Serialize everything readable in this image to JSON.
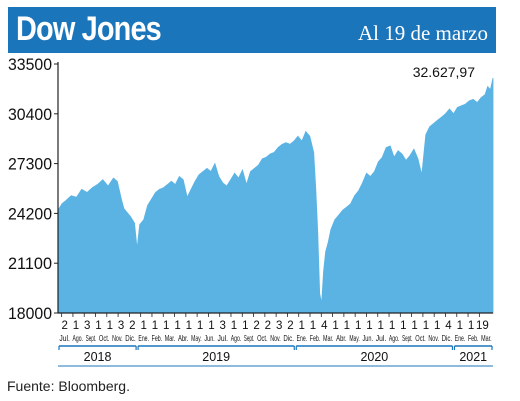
{
  "header": {
    "title": "Dow Jones",
    "subtitle": "Al 19 de marzo"
  },
  "source": "Fuente: Bloomberg.",
  "colors": {
    "header": "#1b75bb",
    "area": "#5bb3e4",
    "plot_bg": "#ffffff",
    "axis_band": "#1b75bb"
  },
  "chart_data": {
    "type": "area",
    "title": "Dow Jones",
    "subtitle": "Al 19 de marzo",
    "ylim": [
      18000,
      33500
    ],
    "yticks": [
      "33500",
      "30400",
      "27300",
      "24200",
      "21100",
      "18000"
    ],
    "annotation": "32.627,97",
    "grid": false,
    "month_labels": [
      "Jul.",
      "Ago.",
      "Sept.",
      "Oct.",
      "Nov.",
      "Dic.",
      "Ene.",
      "Feb.",
      "Mar.",
      "Abr.",
      "May.",
      "Jun.",
      "Jul.",
      "Ago.",
      "Sept.",
      "Oct.",
      "Nov.",
      "Dic.",
      "Ene.",
      "Feb.",
      "Mar.",
      "Abr.",
      "May.",
      "Jun.",
      "Jul.",
      "Ago.",
      "Sept.",
      "Oct.",
      "Nov.",
      "Dic.",
      "Ene.",
      "Feb.",
      "Mar."
    ],
    "day_labels": [
      "2",
      "1",
      "3",
      "1",
      "1",
      "3",
      "2",
      "1",
      "1",
      "1",
      "1",
      "1",
      "1",
      "1",
      "3",
      "1",
      "1",
      "2",
      "2",
      "3",
      "2",
      "1",
      "1",
      "4",
      "1",
      "1",
      "1",
      "1",
      "1",
      "1",
      "1",
      "1",
      "1",
      "1",
      "4",
      "1",
      "1",
      "19"
    ],
    "years": [
      {
        "label": "2018",
        "start": 0,
        "end": 6
      },
      {
        "label": "2019",
        "start": 6,
        "end": 18
      },
      {
        "label": "2020",
        "start": 18,
        "end": 30
      },
      {
        "label": "2021",
        "start": 30,
        "end": 33
      }
    ],
    "x": [
      0,
      0.3,
      0.6,
      1.0,
      1.4,
      1.8,
      2.2,
      2.6,
      3.0,
      3.4,
      3.8,
      4.2,
      4.5,
      4.8,
      5.0,
      5.2,
      5.5,
      5.8,
      6.0,
      6.2,
      6.5,
      6.8,
      7.1,
      7.4,
      7.7,
      8.0,
      8.3,
      8.6,
      8.9,
      9.2,
      9.5,
      9.8,
      10.1,
      10.4,
      10.7,
      11.0,
      11.3,
      11.6,
      11.9,
      12.2,
      12.5,
      12.8,
      13.1,
      13.4,
      13.7,
      14.0,
      14.3,
      14.6,
      14.9,
      15.2,
      15.5,
      15.8,
      16.1,
      16.4,
      16.7,
      17.0,
      17.3,
      17.6,
      17.9,
      18.2,
      18.5,
      18.8,
      19.1,
      19.4,
      19.55,
      19.7,
      19.85,
      20.0,
      20.15,
      20.3,
      20.5,
      20.7,
      21.0,
      21.3,
      21.6,
      21.9,
      22.2,
      22.5,
      22.8,
      23.1,
      23.4,
      23.7,
      24.0,
      24.3,
      24.6,
      24.9,
      25.2,
      25.5,
      25.8,
      26.1,
      26.4,
      26.7,
      27.0,
      27.3,
      27.6,
      27.9,
      28.2,
      28.5,
      28.8,
      29.1,
      29.4,
      29.7,
      30.0,
      30.3,
      30.6,
      30.9,
      31.2,
      31.5,
      31.8,
      32.1,
      32.4,
      32.6,
      32.8,
      33.0
    ],
    "values": [
      24400,
      24800,
      25000,
      25300,
      25200,
      25700,
      25500,
      25800,
      26000,
      26300,
      25900,
      26400,
      26200,
      25100,
      24500,
      24300,
      24000,
      23600,
      22000,
      23500,
      23800,
      24700,
      25100,
      25500,
      25700,
      25800,
      26000,
      26200,
      26000,
      26500,
      26300,
      25200,
      25700,
      26200,
      26600,
      26800,
      27000,
      26800,
      27300,
      26500,
      26100,
      25900,
      26300,
      26700,
      26400,
      26900,
      26000,
      26800,
      27000,
      27200,
      27600,
      27700,
      27900,
      28000,
      28300,
      28500,
      28600,
      28500,
      28700,
      29000,
      28700,
      29300,
      29000,
      28000,
      25800,
      23100,
      19200,
      18600,
      20600,
      21800,
      22400,
      23200,
      23800,
      24100,
      24400,
      24600,
      24800,
      25300,
      25600,
      26100,
      26700,
      26500,
      26800,
      27400,
      27700,
      28300,
      28400,
      27700,
      28100,
      27900,
      27500,
      27800,
      28200,
      27600,
      26600,
      29100,
      29600,
      29800,
      30000,
      30200,
      30400,
      30700,
      30400,
      30800,
      30900,
      31000,
      31200,
      31300,
      31100,
      31400,
      31600,
      32100,
      31900,
      32628
    ]
  }
}
